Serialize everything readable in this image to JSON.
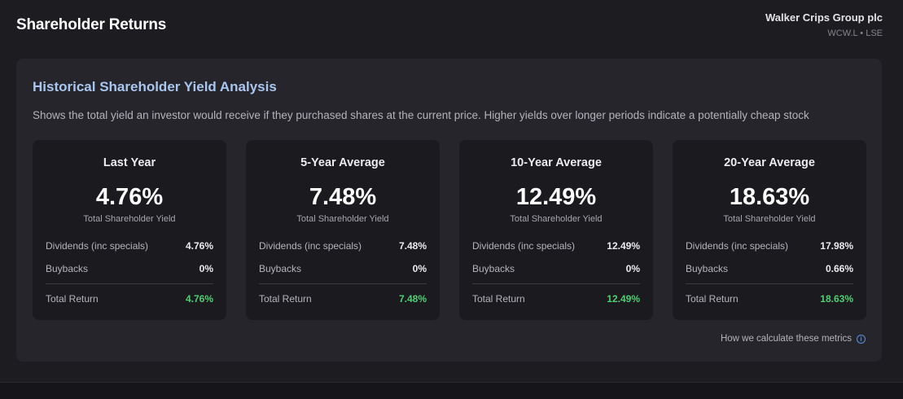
{
  "header": {
    "title": "Shareholder Returns",
    "company_name": "Walker Crips Group plc",
    "ticker": "WCW.L • LSE"
  },
  "panel": {
    "title": "Historical Shareholder Yield Analysis",
    "description": "Shows the total yield an investor would receive if they purchased shares at the current price. Higher yields over longer periods indicate a potentially cheap stock",
    "footer_link": "How we calculate these metrics",
    "cards": [
      {
        "title": "Last Year",
        "big_value": "4.76%",
        "big_label": "Total Shareholder Yield",
        "dividends_label": "Dividends (inc specials)",
        "dividends_value": "4.76%",
        "buybacks_label": "Buybacks",
        "buybacks_value": "0%",
        "total_label": "Total Return",
        "total_value": "4.76%"
      },
      {
        "title": "5-Year Average",
        "big_value": "7.48%",
        "big_label": "Total Shareholder Yield",
        "dividends_label": "Dividends (inc specials)",
        "dividends_value": "7.48%",
        "buybacks_label": "Buybacks",
        "buybacks_value": "0%",
        "total_label": "Total Return",
        "total_value": "7.48%"
      },
      {
        "title": "10-Year Average",
        "big_value": "12.49%",
        "big_label": "Total Shareholder Yield",
        "dividends_label": "Dividends (inc specials)",
        "dividends_value": "12.49%",
        "buybacks_label": "Buybacks",
        "buybacks_value": "0%",
        "total_label": "Total Return",
        "total_value": "12.49%"
      },
      {
        "title": "20-Year Average",
        "big_value": "18.63%",
        "big_label": "Total Shareholder Yield",
        "dividends_label": "Dividends (inc specials)",
        "dividends_value": "17.98%",
        "buybacks_label": "Buybacks",
        "buybacks_value": "0.66%",
        "total_label": "Total Return",
        "total_value": "18.63%"
      }
    ]
  },
  "icons": {
    "footer_icon": "info-icon"
  },
  "colors": {
    "panel_title": "#a9c6ee",
    "positive": "#4fcf73",
    "info": "#5a8fe0"
  }
}
